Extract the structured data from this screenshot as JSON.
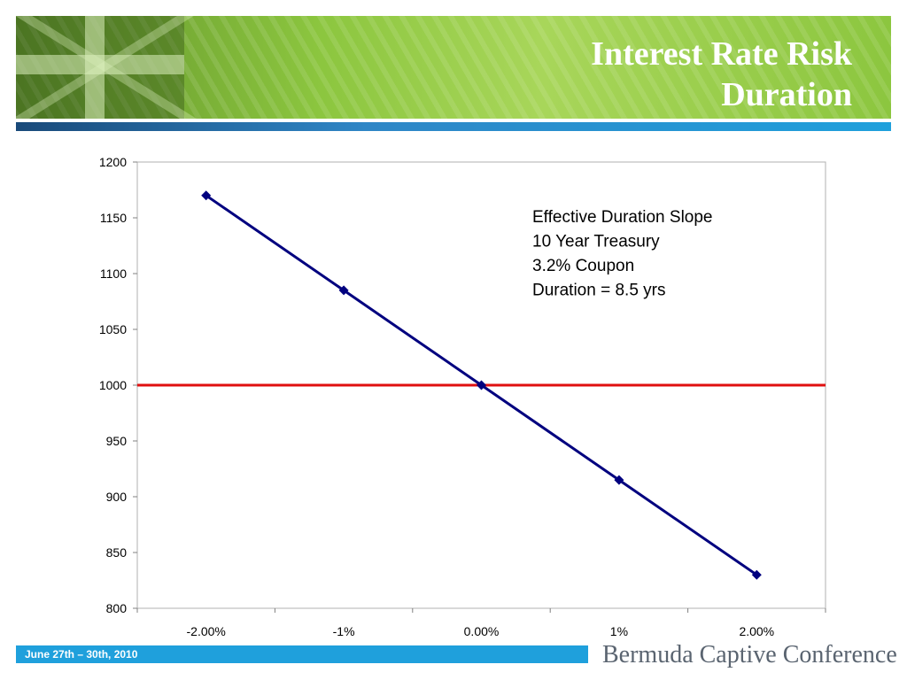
{
  "header": {
    "title_line1": "Interest Rate Risk",
    "title_line2": "Duration"
  },
  "footer": {
    "date": "June 27th – 30th, 2010",
    "brand": "Bermuda Captive Conference"
  },
  "colors": {
    "banner_green": "#8cc63f",
    "accent_blue": "#1fa0dc",
    "series_line": "#00007f",
    "reference_line": "#e01010"
  },
  "chart_data": {
    "type": "line",
    "categories": [
      "-2.00%",
      "-1%",
      "0.00%",
      "1%",
      "2.00%"
    ],
    "series": [
      {
        "values": [
          1170,
          1085,
          1000,
          915,
          830
        ]
      }
    ],
    "reference_line": {
      "y": 1000
    },
    "ylim": [
      800,
      1200
    ],
    "y_ticks": [
      800,
      850,
      900,
      950,
      1000,
      1050,
      1100,
      1150,
      1200
    ],
    "grid": false,
    "annotations": [
      "Effective Duration Slope",
      "10 Year Treasury",
      "3.2% Coupon",
      "Duration = 8.5 yrs"
    ]
  }
}
